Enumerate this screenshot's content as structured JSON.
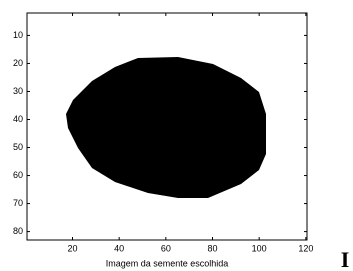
{
  "chart_data": {
    "type": "image",
    "xlabel": "Imagem da semente escolhida",
    "xlim": [
      0.5,
      120.5
    ],
    "xticks": [
      20,
      40,
      60,
      80,
      100,
      120
    ],
    "ylim": [
      2,
      83
    ],
    "yticks": [
      10,
      20,
      30,
      40,
      50,
      60,
      70,
      80
    ],
    "y_reversed": true,
    "annotation": "I"
  }
}
